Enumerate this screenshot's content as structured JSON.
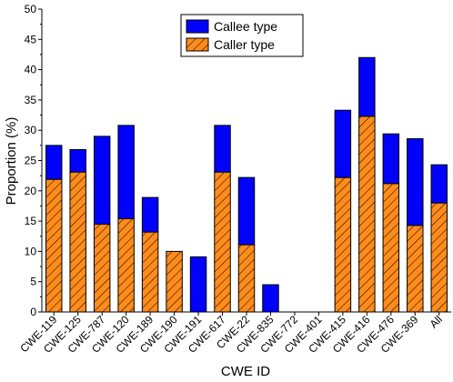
{
  "chart_data": {
    "type": "bar",
    "stacked": true,
    "title": "",
    "xlabel": "CWE ID",
    "ylabel": "Proportion (%)",
    "ylim": [
      0,
      50
    ],
    "yticks": [
      0,
      5,
      10,
      15,
      20,
      25,
      30,
      35,
      40,
      45,
      50
    ],
    "categories": [
      "CWE-119",
      "CWE-125",
      "CWE-787",
      "CWE-120",
      "CWE-189",
      "CWE-190",
      "CWE-191",
      "CWE-617",
      "CWE-22",
      "CWE-835",
      "CWE-772",
      "CWE-401",
      "CWE-415",
      "CWE-416",
      "CWE-476",
      "CWE-369",
      "All"
    ],
    "series": [
      {
        "name": "Caller type",
        "color": "#ff8c1a",
        "pattern": "diagonal-hatch",
        "values": [
          21.9,
          23.1,
          14.5,
          15.4,
          13.2,
          10.0,
          0,
          23.1,
          11.1,
          0,
          0,
          0,
          22.2,
          32.3,
          21.2,
          14.3,
          18.0
        ]
      },
      {
        "name": "Callee type",
        "color": "#0000ff",
        "pattern": "solid",
        "values": [
          5.6,
          3.7,
          14.5,
          15.4,
          5.7,
          0,
          9.1,
          7.7,
          11.1,
          4.5,
          0,
          0,
          11.1,
          9.7,
          8.2,
          14.3,
          6.3
        ]
      }
    ],
    "legend": {
      "position": "top-center",
      "order": [
        "Callee type",
        "Caller type"
      ]
    },
    "grid": false
  }
}
